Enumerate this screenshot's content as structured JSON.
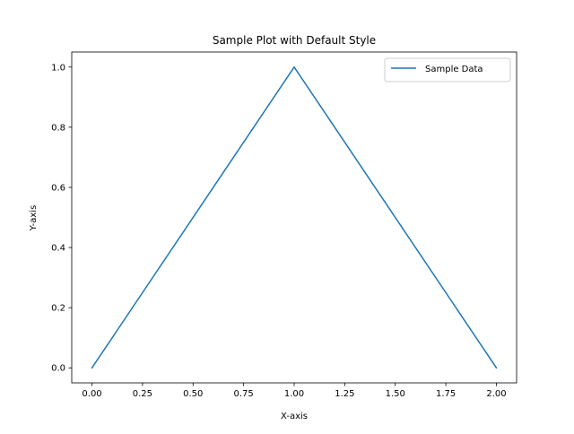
{
  "chart_data": {
    "type": "line",
    "title": "Sample Plot with Default Style",
    "xlabel": "X-axis",
    "ylabel": "Y-axis",
    "xlim": [
      -0.1,
      2.1
    ],
    "ylim": [
      -0.05,
      1.05
    ],
    "xticks": [
      0.0,
      0.25,
      0.5,
      0.75,
      1.0,
      1.25,
      1.5,
      1.75,
      2.0
    ],
    "xtick_labels": [
      "0.00",
      "0.25",
      "0.50",
      "0.75",
      "1.00",
      "1.25",
      "1.50",
      "1.75",
      "2.00"
    ],
    "yticks": [
      0.0,
      0.2,
      0.4,
      0.6,
      0.8,
      1.0
    ],
    "ytick_labels": [
      "0.0",
      "0.2",
      "0.4",
      "0.6",
      "0.8",
      "1.0"
    ],
    "grid": false,
    "legend_position": "top-right",
    "series": [
      {
        "name": "Sample Data",
        "color": "#1f77b4",
        "x": [
          0,
          1,
          2
        ],
        "y": [
          0,
          1,
          0
        ]
      }
    ]
  }
}
